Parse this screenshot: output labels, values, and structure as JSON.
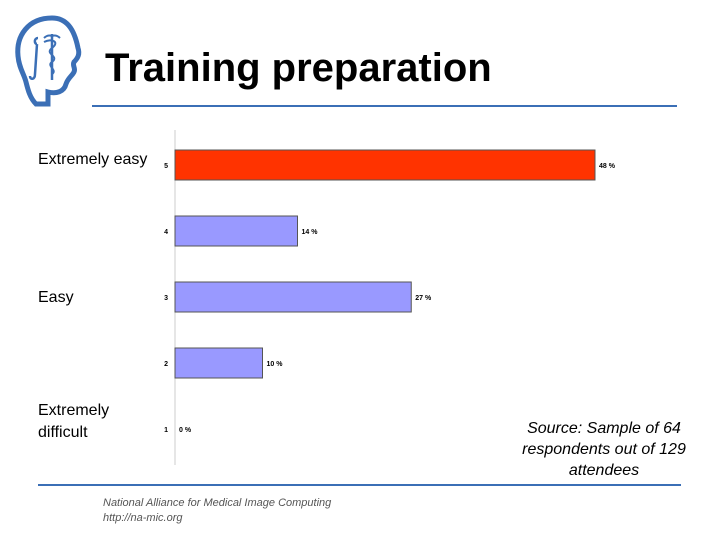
{
  "header": {
    "title": "Training preparation"
  },
  "scale_labels": {
    "top": "Extremely easy",
    "middle": "Easy",
    "bottom": "Extremely difficult"
  },
  "source_note": "Source: Sample of 64 respondents out of 129 attendees",
  "footer": {
    "line1": "National Alliance for Medical Image Computing",
    "line2": "http://na-mic.org"
  },
  "colors": {
    "highlight_bar": "#ff3300",
    "bar": "#9999ff",
    "rule": "#3b6fb6"
  },
  "chart_data": {
    "type": "bar",
    "orientation": "horizontal",
    "categories": [
      "5",
      "4",
      "3",
      "2",
      "1"
    ],
    "values": [
      48,
      14,
      27,
      10,
      0
    ],
    "value_labels": [
      "48 %",
      "14 %",
      "27 %",
      "10 %",
      "0 %"
    ],
    "highlight_category": "5",
    "xlim": [
      0,
      48
    ],
    "grid": false
  }
}
